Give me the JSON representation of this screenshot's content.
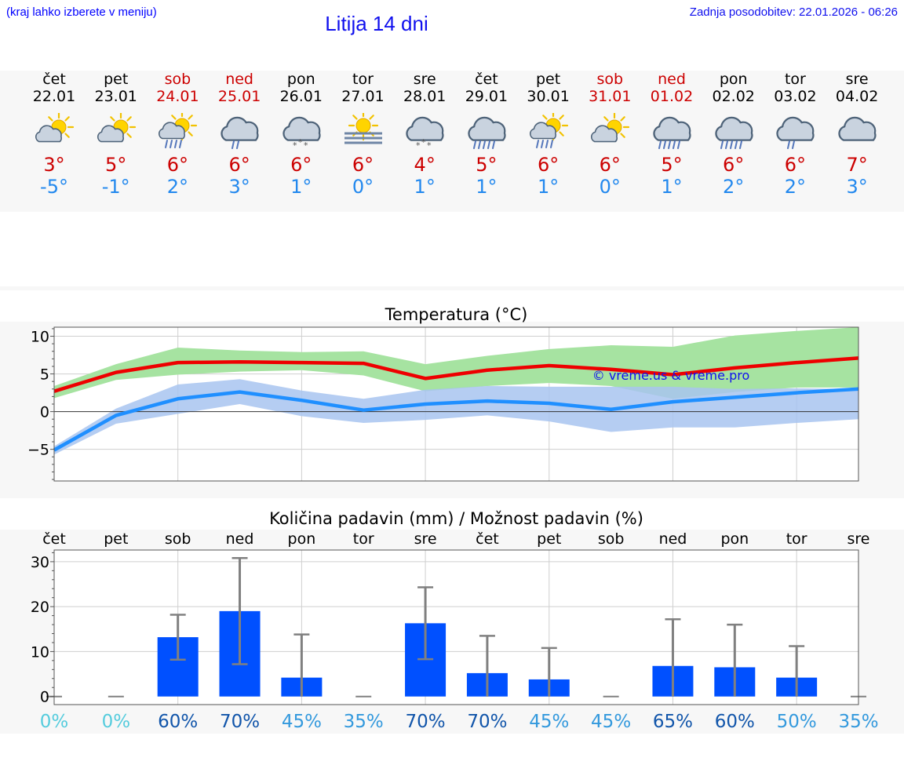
{
  "header": {
    "location_hint": "(kraj lahko izberete v meniju)",
    "title": "Litija 14 dni",
    "updated": "Zadnja posodobitev: 22.01.2026 - 06:26"
  },
  "days": [
    {
      "name": "čet",
      "date": "22.01",
      "weekend": false,
      "icon": "partly-sunny-icon",
      "max": "3°",
      "min": "-5°"
    },
    {
      "name": "pet",
      "date": "23.01",
      "weekend": false,
      "icon": "partly-sunny-icon",
      "max": "5°",
      "min": "-1°"
    },
    {
      "name": "sob",
      "date": "24.01",
      "weekend": true,
      "icon": "sun-cloud-rain-icon",
      "max": "6°",
      "min": "2°"
    },
    {
      "name": "ned",
      "date": "25.01",
      "weekend": true,
      "icon": "cloud-rain-icon",
      "max": "6°",
      "min": "3°"
    },
    {
      "name": "pon",
      "date": "26.01",
      "weekend": false,
      "icon": "cloud-snow-icon",
      "max": "6°",
      "min": "1°"
    },
    {
      "name": "tor",
      "date": "27.01",
      "weekend": false,
      "icon": "sun-fog-icon",
      "max": "6°",
      "min": "0°"
    },
    {
      "name": "sre",
      "date": "28.01",
      "weekend": false,
      "icon": "cloud-snow-icon",
      "max": "4°",
      "min": "1°"
    },
    {
      "name": "čet",
      "date": "29.01",
      "weekend": false,
      "icon": "cloud-heavy-rain-icon",
      "max": "5°",
      "min": "1°"
    },
    {
      "name": "pet",
      "date": "30.01",
      "weekend": false,
      "icon": "sun-cloud-rain-icon",
      "max": "6°",
      "min": "1°"
    },
    {
      "name": "sob",
      "date": "31.01",
      "weekend": true,
      "icon": "partly-sunny-icon",
      "max": "6°",
      "min": "0°"
    },
    {
      "name": "ned",
      "date": "01.02",
      "weekend": true,
      "icon": "cloud-heavy-rain-icon",
      "max": "5°",
      "min": "1°"
    },
    {
      "name": "pon",
      "date": "02.02",
      "weekend": false,
      "icon": "cloud-heavy-rain-icon",
      "max": "6°",
      "min": "2°"
    },
    {
      "name": "tor",
      "date": "03.02",
      "weekend": false,
      "icon": "cloud-rain-icon",
      "max": "6°",
      "min": "2°"
    },
    {
      "name": "sre",
      "date": "04.02",
      "weekend": false,
      "icon": "cloudy-icon",
      "max": "7°",
      "min": "3°"
    }
  ],
  "colors": {
    "max_line": "#ee0000",
    "max_band": "#a6e3a1",
    "min_line": "#1f8fff",
    "min_band": "#a8c4f0",
    "overlap": "#6fb7a8",
    "bar": "#0050ff",
    "error_bar": "#808080",
    "pct_low": "#55ccdd",
    "pct_mid": "#3399dd",
    "pct_high": "#1155aa"
  },
  "chart_data": [
    {
      "type": "line",
      "title": "Temperatura (°C)",
      "watermark": "© vreme.us & vreme.pro",
      "x": [
        0,
        1,
        2,
        3,
        4,
        5,
        6,
        7,
        8,
        9,
        10,
        11,
        12,
        13
      ],
      "ylim": [
        -9.2,
        11.2
      ],
      "yticks": [
        -5,
        0,
        5,
        10
      ],
      "ytick_labels": [
        "−5",
        "0",
        "5",
        "10"
      ],
      "series": [
        {
          "name": "max",
          "values": [
            2.7,
            5.2,
            6.5,
            6.6,
            6.5,
            6.4,
            4.4,
            5.5,
            6.1,
            5.6,
            4.9,
            5.8,
            6.5,
            7.1
          ],
          "band_lo": [
            1.8,
            4.2,
            4.9,
            5.3,
            5.5,
            4.8,
            2.7,
            3.4,
            3.8,
            3.4,
            1.7,
            2.6,
            3.2,
            3.2
          ],
          "band_hi": [
            3.4,
            6.3,
            8.5,
            8.1,
            7.9,
            8.0,
            6.3,
            7.4,
            8.3,
            8.8,
            8.6,
            10.1,
            10.7,
            11.2
          ]
        },
        {
          "name": "min",
          "values": [
            -5.1,
            -0.5,
            1.7,
            2.6,
            1.5,
            0.2,
            1.0,
            1.4,
            1.1,
            0.3,
            1.3,
            1.9,
            2.5,
            3.0
          ],
          "band_lo": [
            -5.7,
            -1.6,
            -0.3,
            1.0,
            -0.6,
            -1.5,
            -1.1,
            -0.5,
            -1.3,
            -2.7,
            -2.1,
            -2.1,
            -1.5,
            -1.0
          ],
          "band_hi": [
            -4.6,
            0.4,
            3.6,
            4.3,
            2.8,
            1.7,
            2.9,
            3.4,
            3.3,
            3.3,
            3.3,
            3.0,
            3.1,
            3.0
          ]
        }
      ]
    },
    {
      "type": "bar",
      "title": "Količina padavin (mm) / Možnost padavin (%)",
      "categories": [
        "čet",
        "pet",
        "sob",
        "ned",
        "pon",
        "tor",
        "sre",
        "čet",
        "pet",
        "sob",
        "ned",
        "pon",
        "tor",
        "sre"
      ],
      "values": [
        0,
        0,
        13.2,
        19.0,
        4.2,
        0,
        16.3,
        5.2,
        3.8,
        0,
        6.8,
        6.5,
        4.2,
        0
      ],
      "error_lo": [
        0,
        0,
        8.2,
        7.2,
        0,
        0,
        8.3,
        0,
        0,
        0,
        0,
        0,
        0,
        0
      ],
      "error_hi": [
        0,
        0,
        18.2,
        30.8,
        13.8,
        0,
        24.3,
        13.5,
        10.8,
        0,
        17.2,
        16.0,
        11.2,
        0
      ],
      "probability": [
        "0%",
        "0%",
        "60%",
        "70%",
        "45%",
        "35%",
        "70%",
        "70%",
        "45%",
        "45%",
        "65%",
        "60%",
        "50%",
        "35%"
      ],
      "ylim": [
        -1.8,
        32.6
      ],
      "yticks": [
        0,
        10,
        20,
        30
      ],
      "ytick_labels": [
        "0",
        "10",
        "20",
        "30"
      ]
    }
  ]
}
